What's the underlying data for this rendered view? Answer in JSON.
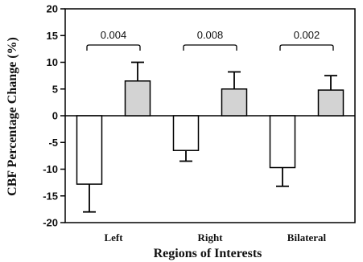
{
  "chart_data": {
    "type": "bar",
    "title": "",
    "xlabel": "Regions of Interests",
    "ylabel": "CBF Percentage  Change (%)",
    "ylim": [
      -20,
      20
    ],
    "yticks": [
      -20,
      -15,
      -10,
      -5,
      0,
      5,
      10,
      15,
      20
    ],
    "grid": false,
    "categories": [
      "Left",
      "Right",
      "Bilateral"
    ],
    "series": [
      {
        "values": [
          -12.8,
          -6.5,
          -9.7
        ],
        "errors": [
          5.2,
          2.0,
          3.5
        ],
        "color": "#ffffff"
      },
      {
        "values": [
          6.5,
          5.0,
          4.8
        ],
        "errors": [
          3.5,
          3.2,
          2.7
        ],
        "color": "#d3d3d3"
      }
    ],
    "annotations": [
      "0.004",
      "0.008",
      "0.002"
    ]
  }
}
